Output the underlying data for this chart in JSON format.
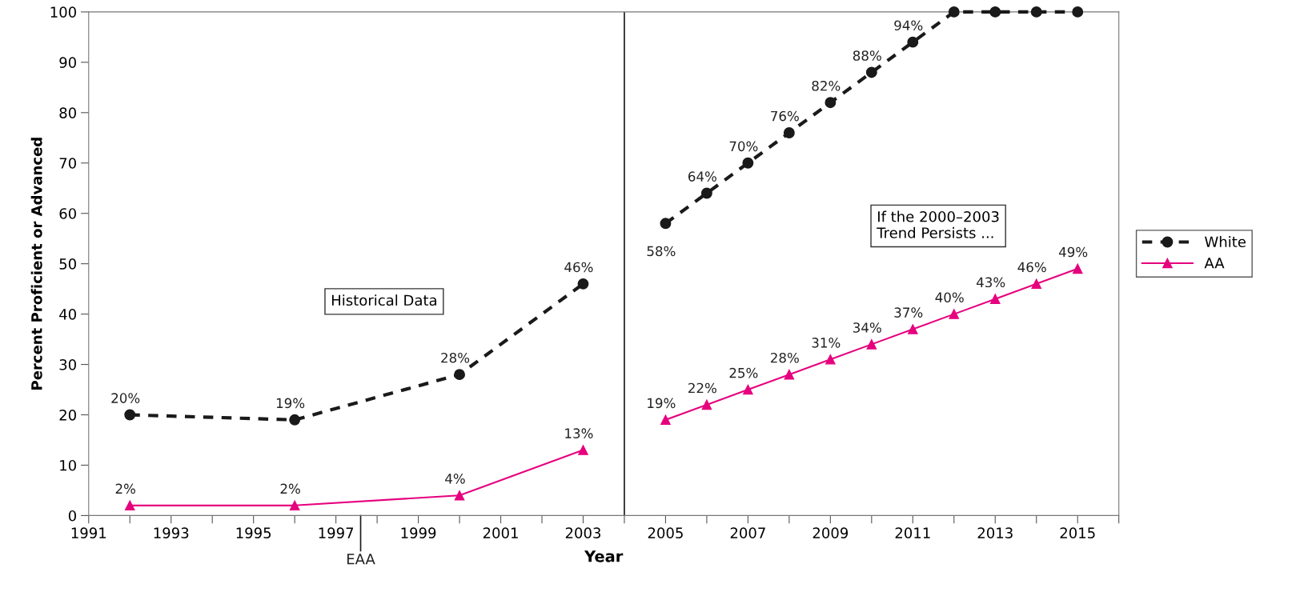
{
  "chart_data": {
    "type": "line",
    "xlabel": "Year",
    "ylabel": "Percent Proficient or Advanced",
    "x": [
      1992,
      1996,
      2000,
      2003,
      2004,
      2005,
      2006,
      2007,
      2008,
      2009,
      2010,
      2011,
      2012,
      2013,
      2014,
      2015
    ],
    "xlim": [
      1991,
      2016
    ],
    "xticks": [
      1991,
      {
        "value": 1992,
        "label": null
      },
      1993,
      {
        "value": 1994,
        "label": null
      },
      1995,
      {
        "value": 1996,
        "label": null
      },
      1997,
      {
        "value": 1998,
        "label": null
      },
      1999,
      {
        "value": 2000,
        "label": null
      },
      2001,
      {
        "value": 2002,
        "label": null
      },
      2003,
      {
        "value": 2004,
        "label": null
      },
      2005,
      {
        "value": 2006,
        "label": null
      },
      2007,
      {
        "value": 2008,
        "label": null
      },
      2009,
      {
        "value": 2010,
        "label": null
      },
      2011,
      {
        "value": 2012,
        "label": null
      },
      2013,
      {
        "value": 2014,
        "label": null
      },
      2015,
      {
        "value": 2016,
        "label": null
      }
    ],
    "ylim": [
      0,
      100
    ],
    "yticks": [
      0,
      10,
      20,
      30,
      40,
      50,
      60,
      70,
      80,
      90,
      100
    ],
    "series": [
      {
        "name": "White",
        "color": "#1a1a1a",
        "line_style": "dashed",
        "marker": "circle",
        "values": [
          20,
          19,
          28,
          46,
          null,
          58,
          64,
          70,
          76,
          82,
          88,
          94,
          100,
          100,
          100,
          100
        ],
        "value_labels": [
          "20%",
          "19%",
          "28%",
          "46%",
          null,
          "58%",
          "64%",
          "70%",
          "76%",
          "82%",
          "88%",
          "94%",
          null,
          null,
          null,
          null
        ]
      },
      {
        "name": "AA",
        "color": "#e6007e",
        "line_style": "solid",
        "marker": "triangle",
        "values": [
          2,
          2,
          4,
          13,
          null,
          19,
          22,
          25,
          28,
          31,
          34,
          37,
          40,
          43,
          46,
          49
        ],
        "value_labels": [
          "2%",
          "2%",
          "4%",
          "13%",
          null,
          "19%",
          "22%",
          "25%",
          "28%",
          "31%",
          "34%",
          "37%",
          "40%",
          "43%",
          "46%",
          "49%"
        ]
      }
    ],
    "ref_lines": [
      {
        "axis": "x",
        "value": 2004,
        "color": "#1a1a1a"
      },
      {
        "axis": "x",
        "value": 1997.6,
        "label": "EAA",
        "color": "#1a1a1a"
      }
    ],
    "annotations": [
      "Historical Data",
      "If the 2000–2003\nTrend Persists ..."
    ],
    "legend": "right",
    "grid": false
  }
}
